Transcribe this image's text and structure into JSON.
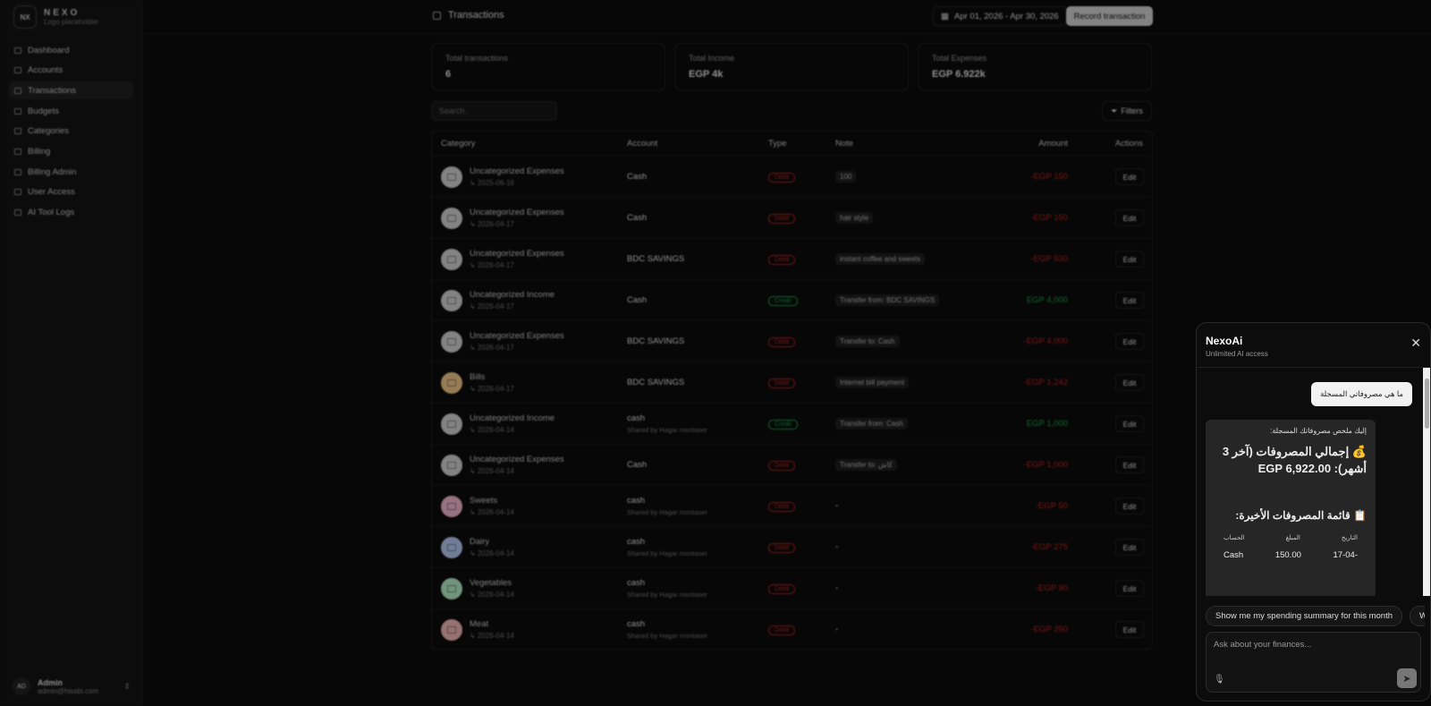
{
  "brand": {
    "initials": "NX",
    "name": "NEXO",
    "subtitle": "Logo placeholder"
  },
  "sidebar": {
    "items": [
      {
        "label": "Dashboard"
      },
      {
        "label": "Accounts"
      },
      {
        "label": "Transactions",
        "active": true
      },
      {
        "label": "Budgets"
      },
      {
        "label": "Categories"
      },
      {
        "label": "Billing"
      },
      {
        "label": "Billing Admin"
      },
      {
        "label": "User Access"
      },
      {
        "label": "AI Tool Logs"
      }
    ]
  },
  "user": {
    "initials": "AD",
    "name": "Admin",
    "email": "admin@hisabi.com"
  },
  "header": {
    "title": "Transactions",
    "date_range": "Apr 01, 2026 - Apr 30, 2026",
    "record_label": "Record transaction"
  },
  "stats": [
    {
      "label": "Total transactions",
      "value": "6"
    },
    {
      "label": "Total Income",
      "value": "EGP 4k"
    },
    {
      "label": "Total Expenses",
      "value": "EGP 6.922k"
    }
  ],
  "search": {
    "placeholder": "Search.."
  },
  "filters_label": "Filters",
  "table": {
    "headers": [
      "Category",
      "Account",
      "Type",
      "Note",
      "Amount",
      "Actions"
    ],
    "rows": [
      {
        "category": "Uncategorized Expenses",
        "date": "2025-06-16",
        "account": "Cash",
        "shared": "",
        "type": "Debit",
        "note": "100",
        "amount": "-EGP 150",
        "color": "#d4d4d4"
      },
      {
        "category": "Uncategorized Expenses",
        "date": "2026-04-17",
        "account": "Cash",
        "shared": "",
        "type": "Debit",
        "note": "hair style",
        "amount": "-EGP 150",
        "color": "#d4d4d4"
      },
      {
        "category": "Uncategorized Expenses",
        "date": "2026-04-17",
        "account": "BDC SAVINGS",
        "shared": "",
        "type": "Debit",
        "note": "instant coffee and sweets",
        "amount": "-EGP 530",
        "color": "#d4d4d4"
      },
      {
        "category": "Uncategorized Income",
        "date": "2026-04-17",
        "account": "Cash",
        "shared": "",
        "type": "Credit",
        "note": "Transfer from: BDC SAVINGS",
        "amount": "EGP 4,000",
        "color": "#d4d4d4"
      },
      {
        "category": "Uncategorized Expenses",
        "date": "2026-04-17",
        "account": "BDC SAVINGS",
        "shared": "",
        "type": "Debit",
        "note": "Transfer to: Cash",
        "amount": "-EGP 4,000",
        "color": "#d4d4d4"
      },
      {
        "category": "Bills",
        "date": "2026-04-17",
        "account": "BDC SAVINGS",
        "shared": "",
        "type": "Debit",
        "note": "Internet bill payment",
        "amount": "-EGP 1,242",
        "color": "#f3c98b"
      },
      {
        "category": "Uncategorized Income",
        "date": "2026-04-14",
        "account": "cash",
        "shared": "Shared by Hagar montaser",
        "type": "Credit",
        "note": "Transfer from: Cash",
        "amount": "EGP 1,000",
        "color": "#d4d4d4"
      },
      {
        "category": "Uncategorized Expenses",
        "date": "2026-04-14",
        "account": "Cash",
        "shared": "",
        "type": "Debit",
        "note": "Transfer to: كاش",
        "amount": "-EGP 1,000",
        "color": "#d4d4d4"
      },
      {
        "category": "Sweets",
        "date": "2026-04-14",
        "account": "cash",
        "shared": "Shared by Hagar montaser",
        "type": "Debit",
        "note": "-",
        "amount": "-EGP 50",
        "color": "#f5b8d0"
      },
      {
        "category": "Dairy",
        "date": "2026-04-14",
        "account": "cash",
        "shared": "Shared by Hagar montaser",
        "type": "Debit",
        "note": "-",
        "amount": "-EGP 275",
        "color": "#b8cdf5"
      },
      {
        "category": "Vegetables",
        "date": "2026-04-14",
        "account": "cash",
        "shared": "Shared by Hagar montaser",
        "type": "Debit",
        "note": "-",
        "amount": "-EGP 90",
        "color": "#b8f0c8"
      },
      {
        "category": "Meat",
        "date": "2026-04-14",
        "account": "cash",
        "shared": "Shared by Hagar montaser",
        "type": "Debit",
        "note": "-",
        "amount": "-EGP 250",
        "color": "#f5b8b8"
      }
    ],
    "edit_label": "Edit"
  },
  "colors": {
    "debit": "#c81e1e",
    "credit": "#16a34a"
  },
  "chat": {
    "title": "NexoAi",
    "subtitle": "Unlimited AI access",
    "user_message": "ما هي مصروفاتي المسجلة",
    "ai_intro": "إليك ملخص مصروفاتك المسجلة:",
    "ai_total": "💰 إجمالي المصروفات (آخر 3 أشهر): EGP 6,922.00",
    "ai_list_title": "📋 قائمة المصروفات الأخيرة:",
    "ai_table_headers": [
      "التاريخ",
      "المبلغ",
      "الحساب"
    ],
    "ai_table_row": [
      "17-04-",
      "150.00",
      "Cash"
    ],
    "suggestions": [
      "Show me my spending summary for this month",
      "Wh"
    ],
    "input_placeholder": "Ask about your finances..."
  }
}
